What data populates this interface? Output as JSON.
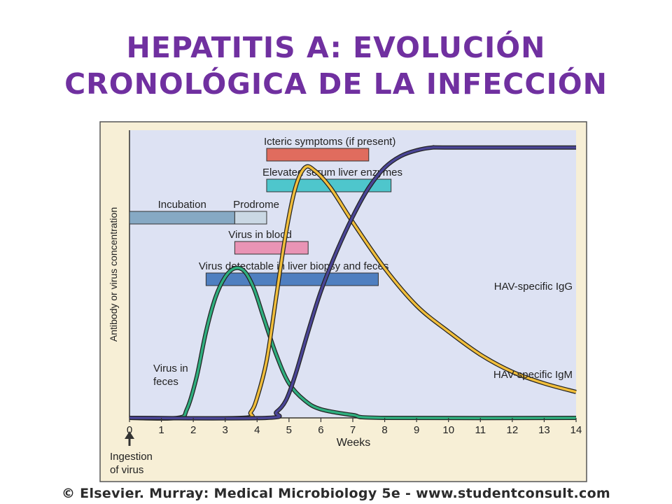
{
  "slide": {
    "title_line1": "HEPATITIS A: EVOLUCIÓN",
    "title_line2": "CRONOLÓGICA DE LA INFECCIÓN",
    "credit": "© Elsevier. Murray: Medical Microbiology 5e - www.studentconsult.com"
  },
  "colors": {
    "title": "#7030a0",
    "plot_background": "#dde2f3",
    "frame_background": "#f7efd6",
    "icteric": "#e06c5e",
    "enzymes": "#4ec6cc",
    "incubation": "#86a9c4",
    "prodrome": "#cad8e4",
    "virus_blood": "#e994b5",
    "virus_liver": "#4f7fc0",
    "virus_feces": "#2fae7e",
    "igm": "#f1be3b",
    "igg": "#4a4596"
  },
  "chart_data": {
    "type": "line",
    "xlabel": "Weeks",
    "ylabel": "Antibody or virus concentration",
    "xlim": [
      0,
      14
    ],
    "xticks": [
      0,
      1,
      2,
      3,
      4,
      5,
      6,
      7,
      8,
      9,
      10,
      11,
      12,
      13,
      14
    ],
    "annotation": "Ingestion of virus",
    "annotation_lines": [
      "Ingestion",
      "of virus"
    ],
    "annotation_x": 0,
    "phases": [
      {
        "name": "Icteric symptoms (if present)",
        "start": 4.3,
        "end": 7.5
      },
      {
        "name": "Elevated serum liver enzymes",
        "start": 4.3,
        "end": 8.2
      },
      {
        "name": "Incubation",
        "start": 0,
        "end": 3.3
      },
      {
        "name": "Prodrome",
        "start": 3.3,
        "end": 4.3
      },
      {
        "name": "Virus in blood",
        "start": 3.3,
        "end": 5.6
      },
      {
        "name": "Virus detectable in liver biopsy and feces",
        "start": 2.4,
        "end": 7.8
      }
    ],
    "series": [
      {
        "name": "Virus in feces",
        "label_lines": [
          "Virus in",
          "feces"
        ],
        "x": [
          0,
          1.5,
          1.8,
          2.1,
          2.4,
          2.7,
          3.0,
          3.3,
          3.6,
          3.9,
          4.2,
          4.6,
          5.0,
          5.5,
          6.0,
          7.0,
          8.0,
          14
        ],
        "y": [
          0,
          0,
          0.03,
          0.14,
          0.3,
          0.42,
          0.49,
          0.52,
          0.51,
          0.45,
          0.35,
          0.22,
          0.12,
          0.06,
          0.03,
          0.01,
          0,
          0
        ]
      },
      {
        "name": "HAV-specific IgM",
        "x": [
          0,
          3.5,
          3.8,
          4.0,
          4.3,
          4.6,
          4.9,
          5.2,
          5.5,
          5.8,
          6.3,
          7.0,
          8.0,
          9.0,
          10.0,
          11.0,
          12.0,
          13.0,
          14.0
        ],
        "y": [
          0,
          0,
          0.02,
          0.07,
          0.2,
          0.42,
          0.64,
          0.8,
          0.87,
          0.86,
          0.8,
          0.68,
          0.52,
          0.39,
          0.3,
          0.22,
          0.16,
          0.12,
          0.09
        ]
      },
      {
        "name": "HAV-specific IgG",
        "x": [
          0,
          4.3,
          4.6,
          4.9,
          5.2,
          5.6,
          6.0,
          6.5,
          7.0,
          7.5,
          8.0,
          8.5,
          9.0,
          9.5,
          10.0,
          14.0
        ],
        "y": [
          0,
          0,
          0.02,
          0.06,
          0.15,
          0.3,
          0.44,
          0.58,
          0.7,
          0.8,
          0.87,
          0.91,
          0.93,
          0.94,
          0.94,
          0.94
        ]
      }
    ]
  }
}
